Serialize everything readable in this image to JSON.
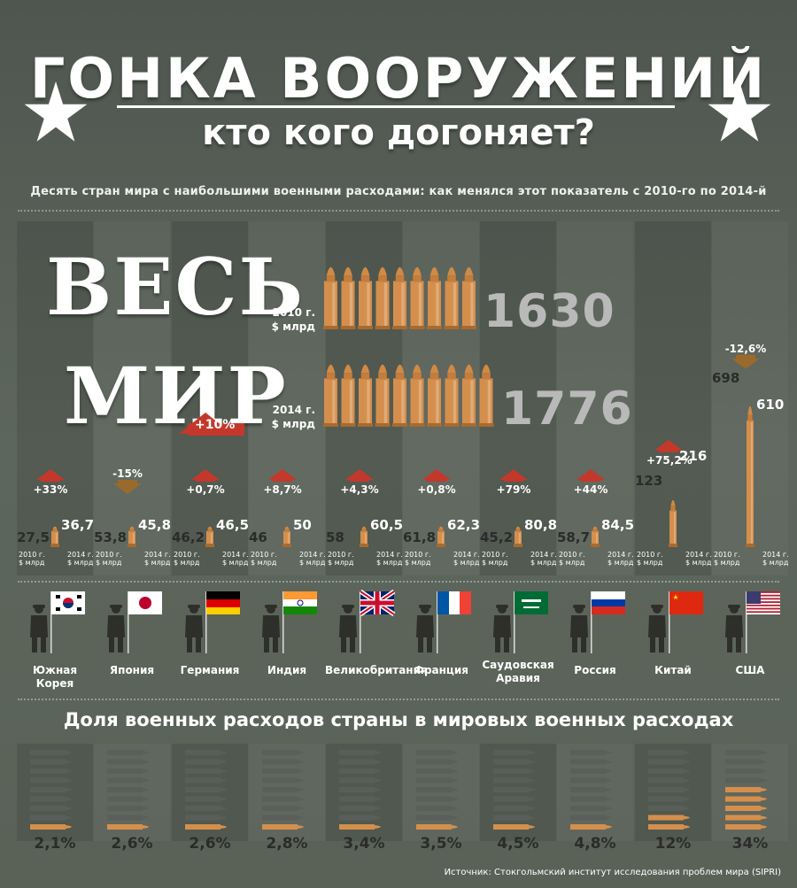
{
  "title": "ГОНКА ВООРУЖЕНИЙ",
  "subtitle": "кто кого догоняет?",
  "description": "Десять стран мира с наибольшими военными расходами: как менялся этот показатель с 2010-го по 2014-й",
  "world": {
    "word1": "ВЕСЬ",
    "word2": "МИР",
    "change": "+10%",
    "label_2010": "2010 г.",
    "label_2014": "2014 г.",
    "unit": "$ млрд",
    "value_2010": "1630",
    "value_2014": "1776"
  },
  "year_labels": {
    "y2010": "2010 г.",
    "y2014": "2014 г.",
    "unit": "$ млрд"
  },
  "share_title": "Доля военных расходов страны в мировых военных расходах",
  "source": "Источник: Стокгольмский институт исследования проблем мира (SIPRI)",
  "colors": {
    "background": "#5a6256",
    "bullet": "#d58f4c",
    "arrow_up": "#c4382b",
    "arrow_down": "#9a6a2c"
  },
  "chart_data": [
    {
      "type": "bar",
      "categories": [
        "Южная Корея",
        "Япония",
        "Германия",
        "Индия",
        "Великобритания",
        "Франция",
        "Саудовская Аравия",
        "Россия",
        "Китай",
        "США"
      ],
      "series": [
        {
          "name": "2010 г.",
          "values": [
            27.5,
            53.8,
            46.2,
            46,
            58,
            61.8,
            45.2,
            58.7,
            123,
            698
          ]
        },
        {
          "name": "2014 г.",
          "values": [
            36.7,
            45.8,
            46.5,
            50,
            60.5,
            62.3,
            80.8,
            84.5,
            216,
            610
          ]
        }
      ],
      "labels_2010": [
        "27,5",
        "53,8",
        "46,2",
        "46",
        "58",
        "61,8",
        "45,2",
        "58,7",
        "123",
        "698"
      ],
      "labels_2014": [
        "36,7",
        "45,8",
        "46,5",
        "50",
        "60,5",
        "62,3",
        "80,8",
        "84,5",
        "216",
        "610"
      ],
      "changes": [
        "+33%",
        "-15%",
        "+0,7%",
        "+8,7%",
        "+4,3%",
        "+0,8%",
        "+79%",
        "+44%",
        "+75,2%",
        "-12,6%"
      ],
      "direction": [
        "up",
        "down",
        "up",
        "up",
        "up",
        "up",
        "up",
        "up",
        "up",
        "down"
      ],
      "ylabel": "$ млрд"
    },
    {
      "type": "bar",
      "categories": [
        "Южная Корея",
        "Япония",
        "Германия",
        "Индия",
        "Великобритания",
        "Франция",
        "Саудовская Аравия",
        "Россия",
        "Китай",
        "США"
      ],
      "values": [
        2.1,
        2.6,
        2.6,
        2.8,
        3.4,
        3.5,
        4.5,
        4.8,
        12,
        34
      ],
      "value_labels": [
        "2,1%",
        "2,6%",
        "2,6%",
        "2,8%",
        "3,4%",
        "3,5%",
        "4,5%",
        "4,8%",
        "12%",
        "34%"
      ],
      "title": "Доля военных расходов страны в мировых военных расходах"
    }
  ]
}
